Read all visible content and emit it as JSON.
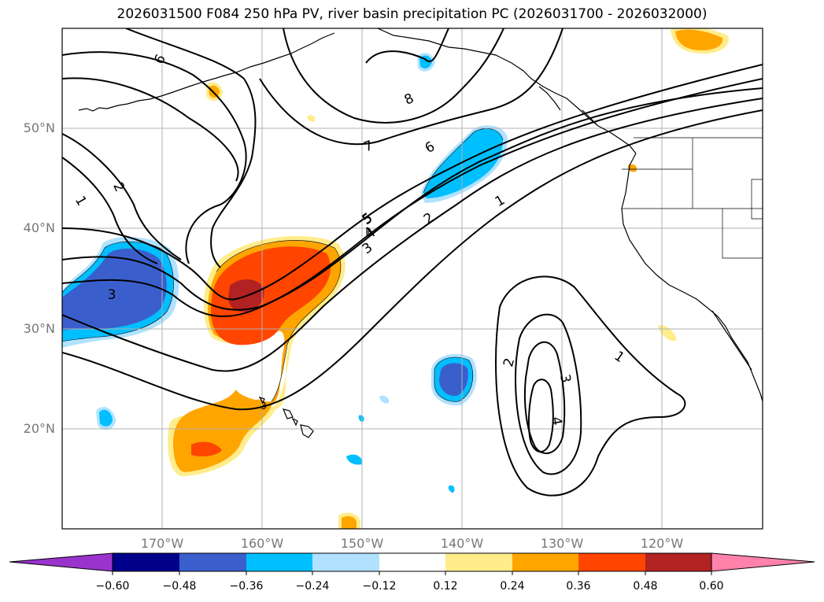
{
  "title": "2026031500 F084 250 hPa PV, river basin precipitation PC (2026031700 - 2026032000)",
  "axes": {
    "lat_labels": [
      "50°N",
      "40°N",
      "30°N",
      "20°N"
    ],
    "lon_labels": [
      "170°W",
      "160°W",
      "150°W",
      "140°W",
      "130°W",
      "120°W"
    ]
  },
  "colorbar": {
    "ticks": [
      "−0.60",
      "−0.48",
      "−0.36",
      "−0.24",
      "−0.12",
      "0.12",
      "0.24",
      "0.36",
      "0.48",
      "0.60"
    ],
    "colors": [
      "#9933cc",
      "#00008b",
      "#3a5fcd",
      "#00bfff",
      "#b0e2ff",
      "#ffffff",
      "#ffec8b",
      "#ffa500",
      "#ff4500",
      "#b22222",
      "#ff82ab"
    ]
  },
  "contour_labels": [
    "1",
    "2",
    "3",
    "4",
    "5",
    "6",
    "7",
    "8",
    "6",
    "1",
    "2",
    "3",
    "4",
    "5",
    "1",
    "2",
    "3",
    "4",
    "3"
  ]
}
